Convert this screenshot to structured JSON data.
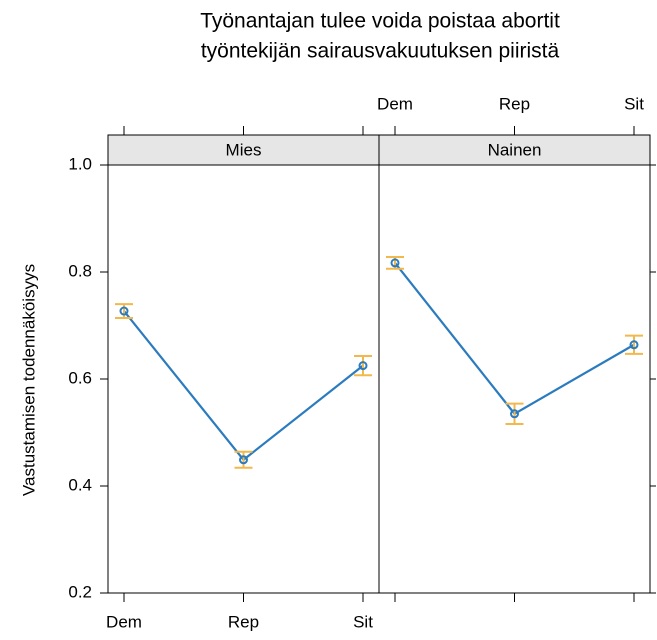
{
  "chart_data": {
    "type": "line",
    "title": [
      "Työnantajan tulee voida poistaa abortit",
      "työntekijän sairausvakuutuksen piiristä"
    ],
    "ylabel": "Vastustamisen todennäköisyys",
    "categories": [
      "Dem",
      "Rep",
      "Sit"
    ],
    "ylim": [
      0.2,
      1.0
    ],
    "yticks": [
      0.2,
      0.4,
      0.6,
      0.8,
      {
        "value": 1.0,
        "label": "1.0"
      }
    ],
    "color": "#2b7bbf",
    "error_color": "#f2b84b",
    "panels": [
      {
        "name": "Mies",
        "values": [
          0.727,
          0.449,
          0.625
        ],
        "errors": [
          0.013,
          0.015,
          0.018
        ]
      },
      {
        "name": "Nainen",
        "values": [
          0.817,
          0.535,
          0.664
        ],
        "errors": [
          0.011,
          0.019,
          0.017
        ]
      }
    ]
  }
}
